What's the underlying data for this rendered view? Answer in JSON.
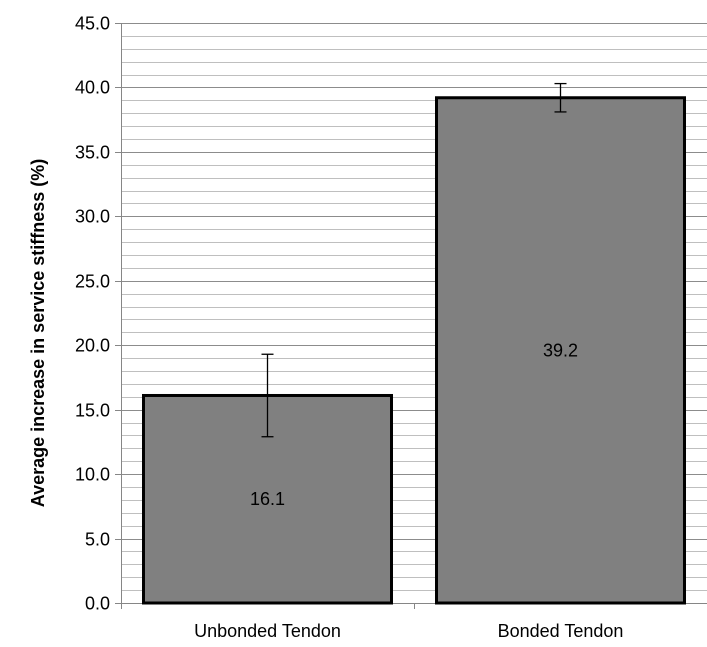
{
  "chart_data": {
    "type": "bar",
    "title": "",
    "xlabel": "",
    "ylabel": "Average increase in service stiffness (%)",
    "ylim": [
      0,
      45
    ],
    "y_major_step": 5,
    "y_minor_step": 1,
    "y_tick_labels": [
      "0.0",
      "5.0",
      "10.0",
      "15.0",
      "20.0",
      "25.0",
      "30.0",
      "35.0",
      "40.0",
      "45.0"
    ],
    "categories": [
      "Unbonded Tendon",
      "Bonded Tendon"
    ],
    "values": [
      16.1,
      39.2
    ],
    "data_labels": [
      "16.1",
      "39.2"
    ],
    "error_bars": [
      {
        "low": 12.9,
        "high": 19.3
      },
      {
        "low": 38.1,
        "high": 40.3
      }
    ],
    "grid": true,
    "legend": false,
    "colors": {
      "bar_fill": "#808080",
      "bar_stroke": "#000000",
      "grid": "#a6a6a6",
      "axis": "#868686"
    }
  }
}
